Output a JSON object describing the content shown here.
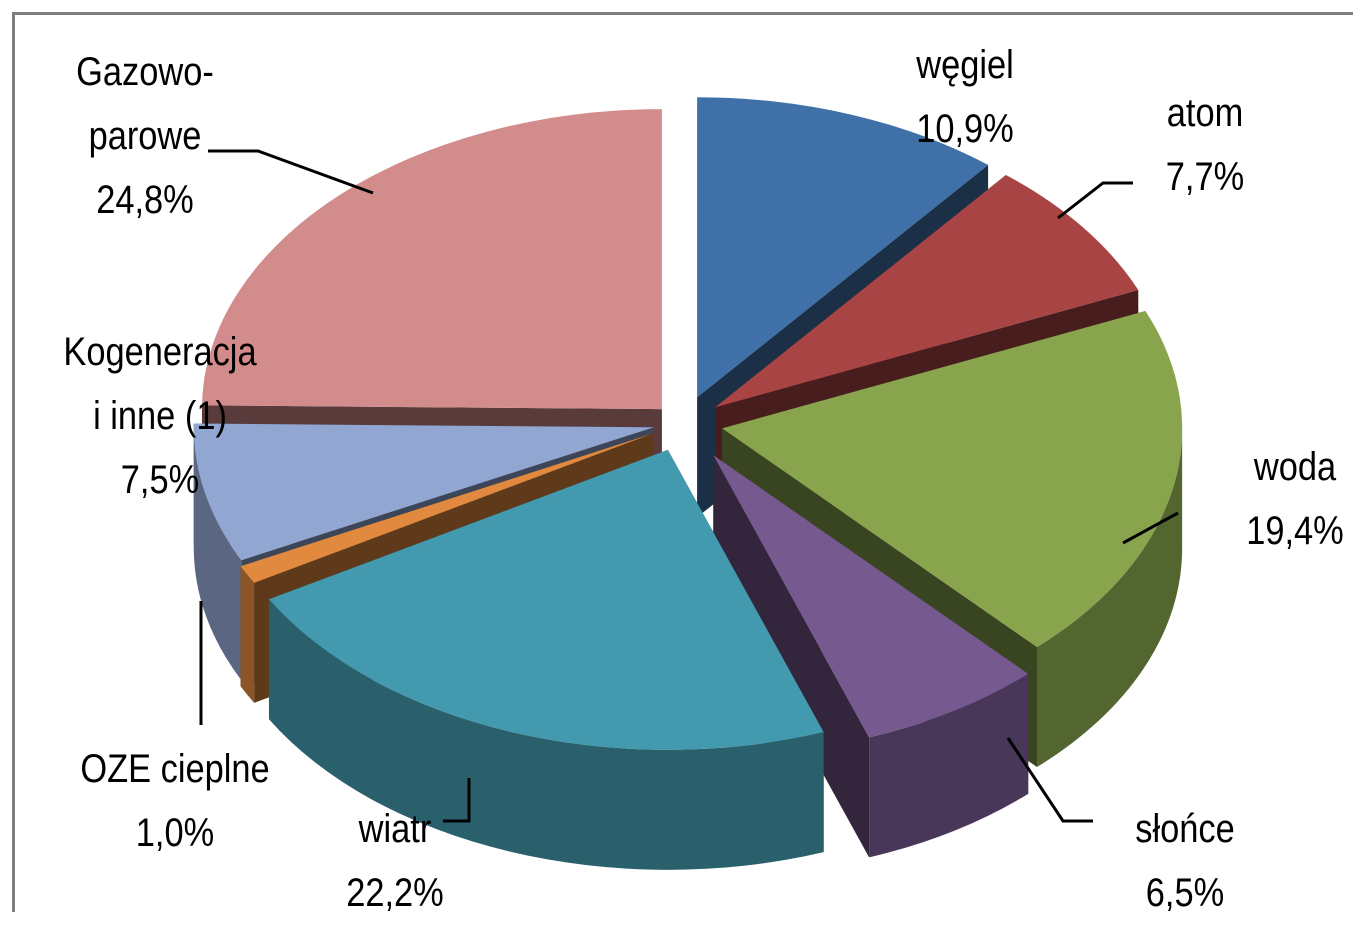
{
  "chart_data": {
    "type": "pie",
    "variant": "3d-exploded",
    "slices": [
      {
        "id": "wegiel",
        "label_lines": [
          "węgiel",
          "10,9%"
        ],
        "value": 10.9,
        "color": "#4070a8"
      },
      {
        "id": "atom",
        "label_lines": [
          "atom",
          "7,7%"
        ],
        "value": 7.7,
        "color": "#a84444"
      },
      {
        "id": "woda",
        "label_lines": [
          "woda",
          "19,4%"
        ],
        "value": 19.4,
        "color": "#88a44c"
      },
      {
        "id": "slonce",
        "label_lines": [
          "słońce",
          "6,5%"
        ],
        "value": 6.5,
        "color": "#76598f"
      },
      {
        "id": "wiatr",
        "label_lines": [
          "wiatr",
          "22,2%"
        ],
        "value": 22.2,
        "color": "#4399ae"
      },
      {
        "id": "oze-cieplne",
        "label_lines": [
          "OZE cieplne",
          "1,0%"
        ],
        "value": 1.0,
        "color": "#e0893f"
      },
      {
        "id": "kogeneracja",
        "label_lines": [
          "Kogeneracja",
          "i inne (1)",
          "7,5%"
        ],
        "value": 7.5,
        "color": "#92a6d2"
      },
      {
        "id": "gazowo-parowe",
        "label_lines": [
          "Gazowo-",
          "parowe",
          "24,8%"
        ],
        "value": 24.8,
        "color": "#d38c8c"
      }
    ]
  }
}
